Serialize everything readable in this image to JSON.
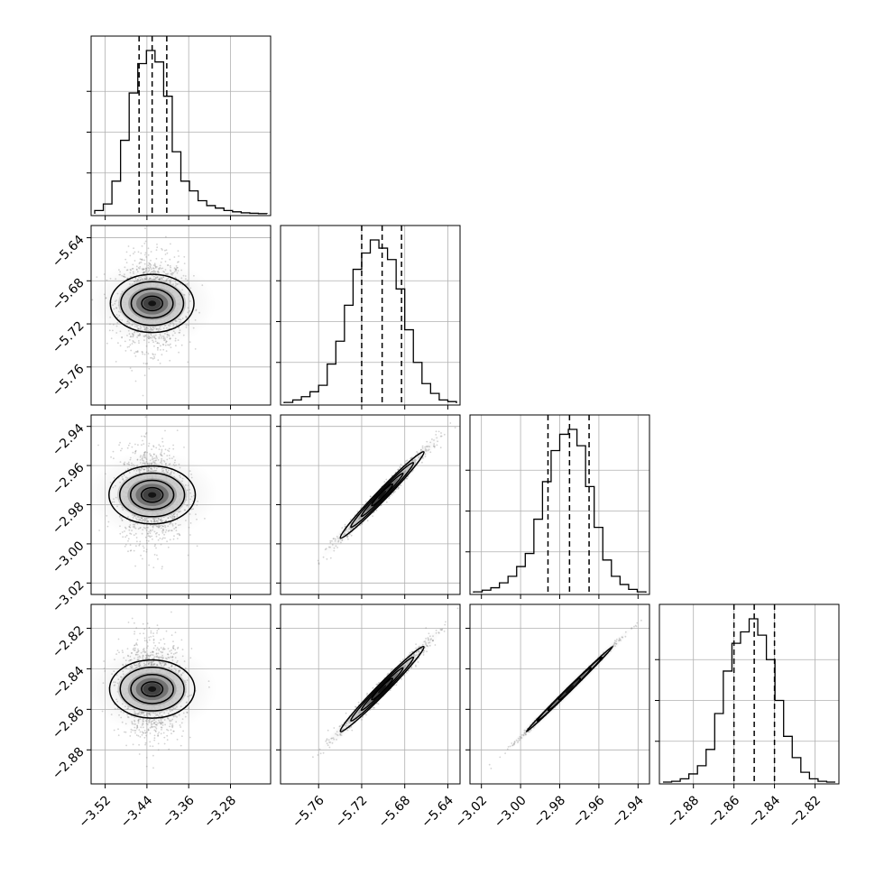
{
  "chart_data": {
    "type": "corner",
    "title": "",
    "grid": true,
    "colors": {
      "ink": "#000000",
      "grid": "#b0b0b0",
      "scatter": "#808080"
    },
    "parameters": [
      {
        "label": "",
        "range": [
          -3.54,
          -3.21
        ],
        "ticks": [
          -3.52,
          -3.44,
          -3.36,
          -3.28
        ],
        "tick_labels": [
          "−3.52",
          "−3.44",
          "−3.36",
          "−3.28"
        ],
        "median": -3.43,
        "quantiles_16_84": [
          -3.455,
          -3.402
        ],
        "hist": {
          "edges": [
            -3.54,
            -3.5235,
            -3.507,
            -3.4905,
            -3.474,
            -3.4575,
            -3.441,
            -3.4245,
            -3.408,
            -3.3915,
            -3.375,
            -3.3585,
            -3.342,
            -3.3255,
            -3.309,
            -3.2925,
            -3.276,
            -3.2595,
            -3.243,
            -3.2265,
            -3.21
          ],
          "counts": [
            0.02,
            0.06,
            0.2,
            0.45,
            0.74,
            0.92,
            1.0,
            0.93,
            0.72,
            0.38,
            0.2,
            0.14,
            0.08,
            0.05,
            0.035,
            0.02,
            0.012,
            0.006,
            0.003,
            0.001
          ]
        }
      },
      {
        "label": "",
        "range": [
          -5.792,
          -5.632
        ],
        "ticks": [
          -5.76,
          -5.72,
          -5.68,
          -5.64
        ],
        "tick_labels": [
          "−5.76",
          "−5.72",
          "−5.68",
          "−5.64"
        ],
        "median": -5.701,
        "quantiles_16_84": [
          -5.72,
          -5.683
        ],
        "hist": {
          "edges": [
            -5.792,
            -5.784,
            -5.776,
            -5.768,
            -5.76,
            -5.752,
            -5.744,
            -5.736,
            -5.728,
            -5.72,
            -5.712,
            -5.704,
            -5.696,
            -5.688,
            -5.68,
            -5.672,
            -5.664,
            -5.656,
            -5.648,
            -5.64,
            -5.632
          ],
          "counts": [
            0.005,
            0.02,
            0.04,
            0.07,
            0.11,
            0.24,
            0.38,
            0.6,
            0.82,
            0.92,
            1.0,
            0.95,
            0.88,
            0.7,
            0.45,
            0.25,
            0.12,
            0.06,
            0.02,
            0.01
          ]
        }
      },
      {
        "label": "",
        "range": [
          -3.024,
          -2.936
        ],
        "ticks": [
          -3.02,
          -3.0,
          -2.98,
          -2.96,
          -2.94
        ],
        "tick_labels": [
          "−3.02",
          "−3.00",
          "−2.98",
          "−2.96",
          "−2.94"
        ],
        "median": -2.975,
        "quantiles_16_84": [
          -2.986,
          -2.965
        ],
        "hist": {
          "edges": [
            -3.024,
            -3.0196,
            -3.0152,
            -3.0108,
            -3.0064,
            -3.002,
            -2.9976,
            -2.9932,
            -2.9888,
            -2.9844,
            -2.98,
            -2.9756,
            -2.9712,
            -2.9668,
            -2.9624,
            -2.958,
            -2.9536,
            -2.9492,
            -2.9448,
            -2.9404,
            -2.936
          ],
          "counts": [
            0.005,
            0.015,
            0.03,
            0.06,
            0.1,
            0.16,
            0.24,
            0.45,
            0.68,
            0.87,
            0.97,
            1.0,
            0.9,
            0.65,
            0.4,
            0.2,
            0.1,
            0.05,
            0.02,
            0.005
          ]
        }
      },
      {
        "label": "",
        "range": [
          -2.895,
          -2.81
        ],
        "ticks": [
          -2.88,
          -2.86,
          -2.84,
          -2.82
        ],
        "tick_labels": [
          "−2.88",
          "−2.86",
          "−2.84",
          "−2.82"
        ],
        "median": -2.85,
        "quantiles_16_84": [
          -2.86,
          -2.84
        ],
        "hist": {
          "edges": [
            -2.895,
            -2.89075,
            -2.8865,
            -2.88225,
            -2.878,
            -2.87375,
            -2.8695,
            -2.86525,
            -2.861,
            -2.85675,
            -2.8525,
            -2.84825,
            -2.844,
            -2.83975,
            -2.8355,
            -2.83125,
            -2.827,
            -2.82275,
            -2.8185,
            -2.81425,
            -2.81
          ],
          "counts": [
            0.0,
            0.005,
            0.02,
            0.05,
            0.1,
            0.2,
            0.42,
            0.68,
            0.85,
            0.92,
            1.0,
            0.9,
            0.75,
            0.5,
            0.28,
            0.15,
            0.06,
            0.02,
            0.005,
            0.0
          ]
        }
      }
    ],
    "covariance_pairs": [
      {
        "row": 1,
        "col": 0,
        "rho": 0.0
      },
      {
        "row": 2,
        "col": 0,
        "rho": 0.0
      },
      {
        "row": 2,
        "col": 1,
        "rho": 0.985
      },
      {
        "row": 3,
        "col": 0,
        "rho": 0.0
      },
      {
        "row": 3,
        "col": 1,
        "rho": 0.985
      },
      {
        "row": 3,
        "col": 2,
        "rho": 0.998
      }
    ]
  }
}
